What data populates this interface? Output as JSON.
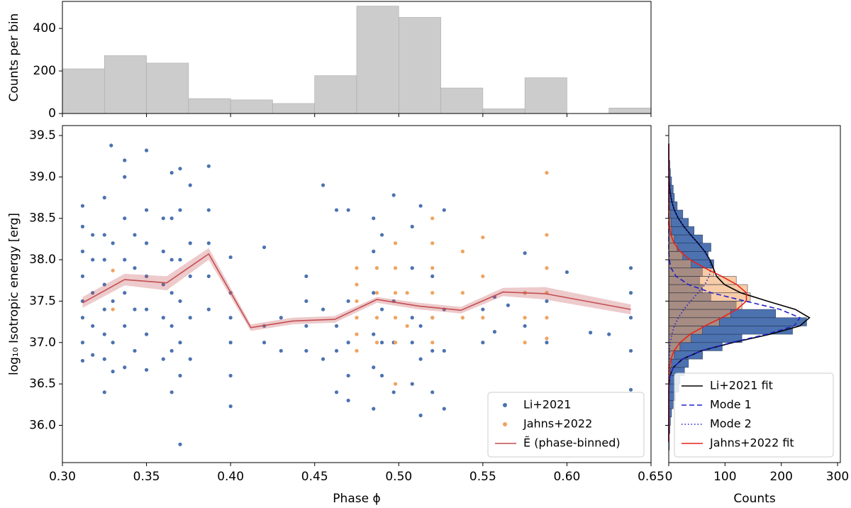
{
  "chart_data": [
    {
      "type": "histogram",
      "ylabel": "Counts per bin",
      "color": "#cccccc",
      "bins": [
        0.3,
        0.325,
        0.35,
        0.375,
        0.4,
        0.425,
        0.45,
        0.475,
        0.5,
        0.525,
        0.55,
        0.575,
        0.6,
        0.625,
        0.65
      ],
      "values": [
        210,
        272,
        237,
        70,
        64,
        47,
        178,
        505,
        452,
        120,
        22,
        168,
        0,
        26
      ],
      "xlim": [
        0.3,
        0.65
      ],
      "xticks": [
        0.3,
        0.35,
        0.4,
        0.45,
        0.5,
        0.55,
        0.6,
        0.65
      ],
      "ylim": [
        0,
        527
      ],
      "yticks": [
        0,
        200,
        400
      ]
    },
    {
      "type": "scatter",
      "xlabel": "Phase ϕ",
      "ylabel": "log₁₀ Isotropic energy [erg]",
      "xlim": [
        0.3,
        0.65
      ],
      "ylim": [
        35.55,
        39.62
      ],
      "xticks": [
        {
          "value": 0.3,
          "label": "0.30"
        },
        0.35,
        {
          "value": 0.4,
          "label": "0.40"
        },
        0.45,
        {
          "value": 0.5,
          "label": "0.50"
        },
        0.55,
        {
          "value": 0.6,
          "label": "0.60"
        },
        0.65
      ],
      "yticks": [
        {
          "value": 36,
          "label": "36.0"
        },
        36.5,
        {
          "value": 37,
          "label": "37.0"
        },
        37.5,
        {
          "value": 38,
          "label": "38.0"
        },
        38.5,
        {
          "value": 39,
          "label": "39.0"
        },
        39.5
      ],
      "legend": "lower right",
      "series": [
        {
          "name": "Li+2021",
          "color": "#4c72b0",
          "x": [
            0.312,
            0.312,
            0.312,
            0.312,
            0.312,
            0.312,
            0.312,
            0.312,
            0.318,
            0.318,
            0.318,
            0.318,
            0.318,
            0.325,
            0.325,
            0.325,
            0.325,
            0.325,
            0.325,
            0.325,
            0.325,
            0.33,
            0.33,
            0.33,
            0.33,
            0.329,
            0.337,
            0.337,
            0.337,
            0.337,
            0.337,
            0.337,
            0.337,
            0.343,
            0.343,
            0.343,
            0.343,
            0.35,
            0.35,
            0.35,
            0.35,
            0.35,
            0.35,
            0.35,
            0.36,
            0.36,
            0.36,
            0.36,
            0.36,
            0.365,
            0.365,
            0.365,
            0.365,
            0.365,
            0.365,
            0.365,
            0.37,
            0.37,
            0.37,
            0.37,
            0.37,
            0.37,
            0.37,
            0.376,
            0.376,
            0.376,
            0.376,
            0.376,
            0.387,
            0.387,
            0.387,
            0.387,
            0.387,
            0.4,
            0.4,
            0.4,
            0.4,
            0.4,
            0.4,
            0.42,
            0.42,
            0.42,
            0.43,
            0.43,
            0.445,
            0.445,
            0.445,
            0.445,
            0.455,
            0.455,
            0.455,
            0.463,
            0.463,
            0.463,
            0.463,
            0.47,
            0.47,
            0.47,
            0.47,
            0.47,
            0.485,
            0.485,
            0.485,
            0.485,
            0.485,
            0.485,
            0.49,
            0.49,
            0.49,
            0.49,
            0.497,
            0.497,
            0.497,
            0.497,
            0.508,
            0.508,
            0.508,
            0.508,
            0.508,
            0.513,
            0.513,
            0.513,
            0.513,
            0.52,
            0.52,
            0.52,
            0.52,
            0.527,
            0.527,
            0.527,
            0.527,
            0.55,
            0.55,
            0.557,
            0.557,
            0.565,
            0.575,
            0.575,
            0.575,
            0.588,
            0.588,
            0.6,
            0.614,
            0.625,
            0.638,
            0.638,
            0.638,
            0.638,
            0.638
          ],
          "values": [
            36.78,
            37.0,
            37.3,
            37.5,
            37.8,
            38.1,
            38.4,
            38.65,
            36.85,
            37.2,
            37.6,
            38.0,
            38.3,
            36.4,
            36.8,
            37.1,
            37.4,
            37.7,
            38.0,
            38.3,
            38.75,
            36.65,
            37.0,
            37.5,
            38.2,
            39.38,
            36.7,
            37.2,
            37.6,
            38.0,
            38.5,
            39.0,
            39.2,
            36.9,
            37.4,
            37.9,
            38.3,
            36.67,
            37.1,
            37.4,
            37.8,
            38.2,
            38.6,
            39.32,
            36.8,
            37.3,
            37.7,
            38.1,
            38.5,
            36.4,
            36.9,
            37.2,
            37.6,
            38.0,
            38.5,
            39.05,
            35.77,
            36.6,
            37.0,
            37.5,
            38.0,
            38.6,
            39.1,
            36.8,
            37.3,
            37.8,
            38.2,
            38.9,
            37.4,
            37.8,
            38.2,
            38.6,
            39.13,
            36.23,
            36.6,
            37.0,
            37.3,
            37.6,
            38.03,
            37.0,
            37.2,
            38.15,
            36.9,
            37.3,
            36.9,
            37.2,
            37.5,
            37.8,
            36.8,
            37.4,
            38.9,
            36.4,
            36.9,
            37.2,
            38.6,
            36.3,
            36.6,
            37.0,
            37.5,
            38.6,
            36.2,
            36.7,
            37.1,
            37.6,
            38.1,
            38.5,
            36.6,
            37.0,
            37.4,
            38.3,
            36.4,
            37.0,
            37.5,
            38.78,
            36.5,
            37.0,
            37.3,
            37.9,
            38.4,
            36.12,
            36.8,
            37.2,
            38.65,
            36.4,
            36.9,
            37.3,
            37.8,
            36.2,
            36.9,
            37.4,
            38.6,
            37.0,
            37.4,
            37.13,
            37.55,
            37.45,
            37.2,
            37.6,
            38.08,
            37.0,
            37.5,
            37.85,
            37.12,
            37.1,
            36.43,
            36.9,
            37.3,
            37.6,
            37.9
          ]
        },
        {
          "name": "Jahns+2022",
          "color": "#f0a35e",
          "x": [
            0.33,
            0.33,
            0.475,
            0.475,
            0.475,
            0.475,
            0.475,
            0.475,
            0.487,
            0.487,
            0.487,
            0.487,
            0.498,
            0.498,
            0.498,
            0.498,
            0.498,
            0.498,
            0.505,
            0.505,
            0.52,
            0.52,
            0.52,
            0.52,
            0.52,
            0.52,
            0.538,
            0.538,
            0.538,
            0.55,
            0.55,
            0.55,
            0.575,
            0.575,
            0.575,
            0.588,
            0.588,
            0.588,
            0.588,
            0.588,
            0.588
          ],
          "values": [
            37.4,
            37.87,
            36.9,
            37.1,
            37.3,
            37.5,
            37.7,
            37.9,
            37.0,
            37.3,
            37.6,
            37.9,
            36.5,
            37.0,
            37.3,
            37.6,
            37.9,
            38.2,
            37.2,
            37.6,
            37.0,
            37.3,
            37.6,
            37.9,
            38.2,
            38.5,
            37.3,
            37.6,
            38.1,
            37.3,
            37.8,
            38.27,
            37.0,
            37.3,
            37.6,
            37.05,
            37.3,
            37.6,
            37.9,
            38.3,
            39.05
          ]
        },
        {
          "name": "Ẽ (phase-binned)",
          "color": "#c44e52",
          "type": "line",
          "x": [
            0.312,
            0.337,
            0.362,
            0.387,
            0.412,
            0.437,
            0.462,
            0.487,
            0.512,
            0.537,
            0.562,
            0.587,
            0.638
          ],
          "values": [
            37.48,
            37.76,
            37.72,
            38.07,
            37.18,
            37.26,
            37.28,
            37.52,
            37.44,
            37.39,
            37.61,
            37.59,
            37.4
          ],
          "band_upper": [
            37.55,
            37.83,
            37.8,
            38.14,
            37.22,
            37.3,
            37.32,
            37.55,
            37.48,
            37.43,
            37.66,
            37.67,
            37.46
          ],
          "band_lower": [
            37.42,
            37.69,
            37.63,
            38.0,
            37.14,
            37.22,
            37.24,
            37.48,
            37.4,
            37.35,
            37.56,
            37.52,
            37.34
          ]
        }
      ]
    },
    {
      "type": "histogram_h",
      "xlabel": "Counts",
      "xlim": [
        0,
        305
      ],
      "xticks": [
        0,
        100,
        200,
        300
      ],
      "ylim": [
        35.55,
        39.62
      ],
      "yticks": [
        36,
        36.5,
        37,
        37.5,
        38,
        38.5,
        39,
        39.5
      ],
      "legend": "lower right",
      "histograms": [
        {
          "color": "#4c72b0",
          "alpha": 1,
          "bins": [
            35.7,
            35.8,
            35.9,
            36.0,
            36.1,
            36.2,
            36.3,
            36.4,
            36.5,
            36.6,
            36.7,
            36.8,
            36.9,
            37.0,
            37.1,
            37.2,
            37.3,
            37.4,
            37.5,
            37.6,
            37.7,
            37.8,
            37.9,
            38.0,
            38.1,
            38.2,
            38.3,
            38.4,
            38.5,
            38.6,
            38.7,
            38.8,
            38.9,
            39.0,
            39.1,
            39.2,
            39.3,
            39.4
          ],
          "values": [
            1,
            1,
            2,
            3,
            5,
            8,
            12,
            18,
            20,
            28,
            35,
            60,
            95,
            130,
            220,
            245,
            190,
            120,
            75,
            60,
            55,
            60,
            80,
            70,
            75,
            60,
            45,
            35,
            25,
            15,
            10,
            8,
            5,
            3,
            2,
            1,
            1
          ]
        },
        {
          "color": "#f0a35e",
          "alpha": 0.55,
          "bins": [
            36.5,
            36.6,
            36.7,
            36.8,
            36.9,
            37.0,
            37.1,
            37.2,
            37.3,
            37.4,
            37.5,
            37.6,
            37.7,
            37.8,
            37.9,
            38.0,
            38.1,
            38.2,
            38.3,
            38.4,
            38.5,
            38.6,
            38.7,
            38.8,
            38.9,
            39.0,
            39.1
          ],
          "values": [
            2,
            3,
            5,
            10,
            20,
            40,
            60,
            90,
            110,
            130,
            145,
            140,
            120,
            80,
            40,
            25,
            15,
            10,
            5,
            4,
            3,
            2,
            1,
            1,
            0,
            1
          ]
        }
      ],
      "series": [
        {
          "name": "Li+2021 fit",
          "color": "#000000",
          "linestyle": "solid",
          "x": [
            35.8,
            35.9,
            36.0,
            36.1,
            36.2,
            36.3,
            36.4,
            36.5,
            36.6,
            36.7,
            36.8,
            36.9,
            37.0,
            37.1,
            37.2,
            37.3,
            37.4,
            37.5,
            37.6,
            37.7,
            37.8,
            37.9,
            38.0,
            38.1,
            38.2,
            38.3,
            38.4,
            38.5,
            38.6,
            38.7,
            38.8,
            38.9,
            39.0,
            39.1,
            39.2,
            39.3,
            39.4
          ],
          "values": [
            0,
            0,
            0,
            0,
            0,
            0,
            0,
            0.5,
            2.3,
            8.2,
            24.5,
            58,
            114,
            180,
            233,
            250,
            225,
            175,
            128,
            99,
            85,
            79,
            73,
            64,
            52,
            39,
            27,
            17,
            10,
            5.5,
            2.8,
            1.3,
            0.5,
            0.2,
            0.1,
            0,
            0
          ]
        },
        {
          "name": "Mode 1",
          "color": "#1f1fcc",
          "linestyle": "dashed",
          "x": [
            35.8,
            35.9,
            36.0,
            36.1,
            36.2,
            36.3,
            36.4,
            36.5,
            36.6,
            36.7,
            36.8,
            36.9,
            37.0,
            37.1,
            37.2,
            37.3,
            37.4,
            37.5,
            37.6,
            37.7,
            37.8,
            37.9,
            38.0,
            38.1,
            38.2,
            38.3,
            38.4,
            38.5,
            38.6,
            38.7,
            38.8,
            38.9,
            39.0,
            39.1,
            39.2,
            39.3,
            39.4
          ],
          "values": [
            0,
            0,
            0,
            0,
            0,
            0,
            0,
            0.5,
            2.3,
            8.2,
            24,
            57,
            111,
            174,
            223,
            233,
            198,
            136,
            76,
            35,
            13,
            4,
            1,
            0,
            0,
            0,
            0,
            0,
            0,
            0,
            0,
            0,
            0,
            0,
            0,
            0,
            0
          ]
        },
        {
          "name": "Mode 2",
          "color": "#1f1fcc",
          "linestyle": "dotted",
          "x": [
            35.8,
            35.9,
            36.0,
            36.1,
            36.2,
            36.3,
            36.4,
            36.5,
            36.6,
            36.7,
            36.8,
            36.9,
            37.0,
            37.1,
            37.2,
            37.3,
            37.4,
            37.5,
            37.6,
            37.7,
            37.8,
            37.9,
            38.0,
            38.1,
            38.2,
            38.3,
            38.4,
            38.5,
            38.6,
            38.7,
            38.8,
            38.9,
            39.0,
            39.1,
            39.2,
            39.3,
            39.4
          ],
          "values": [
            0,
            0,
            0,
            0,
            0,
            0,
            0,
            0,
            0,
            0,
            0.5,
            1.3,
            2.8,
            5.5,
            10,
            17,
            27,
            39,
            52,
            64,
            72,
            75,
            72,
            64,
            52,
            39,
            27,
            17,
            10,
            5.5,
            2.8,
            1.3,
            0.5,
            0.2,
            0.1,
            0,
            0
          ]
        },
        {
          "name": "Jahns+2022 fit",
          "color": "#e8221b",
          "linestyle": "solid",
          "x": [
            35.8,
            35.9,
            36.0,
            36.1,
            36.2,
            36.3,
            36.4,
            36.5,
            36.6,
            36.7,
            36.8,
            36.9,
            37.0,
            37.1,
            37.2,
            37.3,
            37.4,
            37.5,
            37.6,
            37.7,
            37.8,
            37.9,
            38.0,
            38.1,
            38.2,
            38.3,
            38.4,
            38.5,
            38.6,
            38.7,
            38.8,
            38.9,
            39.0,
            39.1,
            39.2,
            39.3,
            39.4
          ],
          "values": [
            0,
            0,
            0,
            0,
            0,
            0,
            0,
            0,
            0.4,
            1.4,
            3.9,
            9.4,
            20,
            38,
            64,
            94,
            121,
            138,
            138,
            121,
            94,
            64,
            38,
            20,
            9.4,
            3.9,
            1.4,
            0.4,
            0,
            0,
            0,
            0,
            0,
            0,
            0,
            0,
            0
          ]
        }
      ]
    }
  ]
}
